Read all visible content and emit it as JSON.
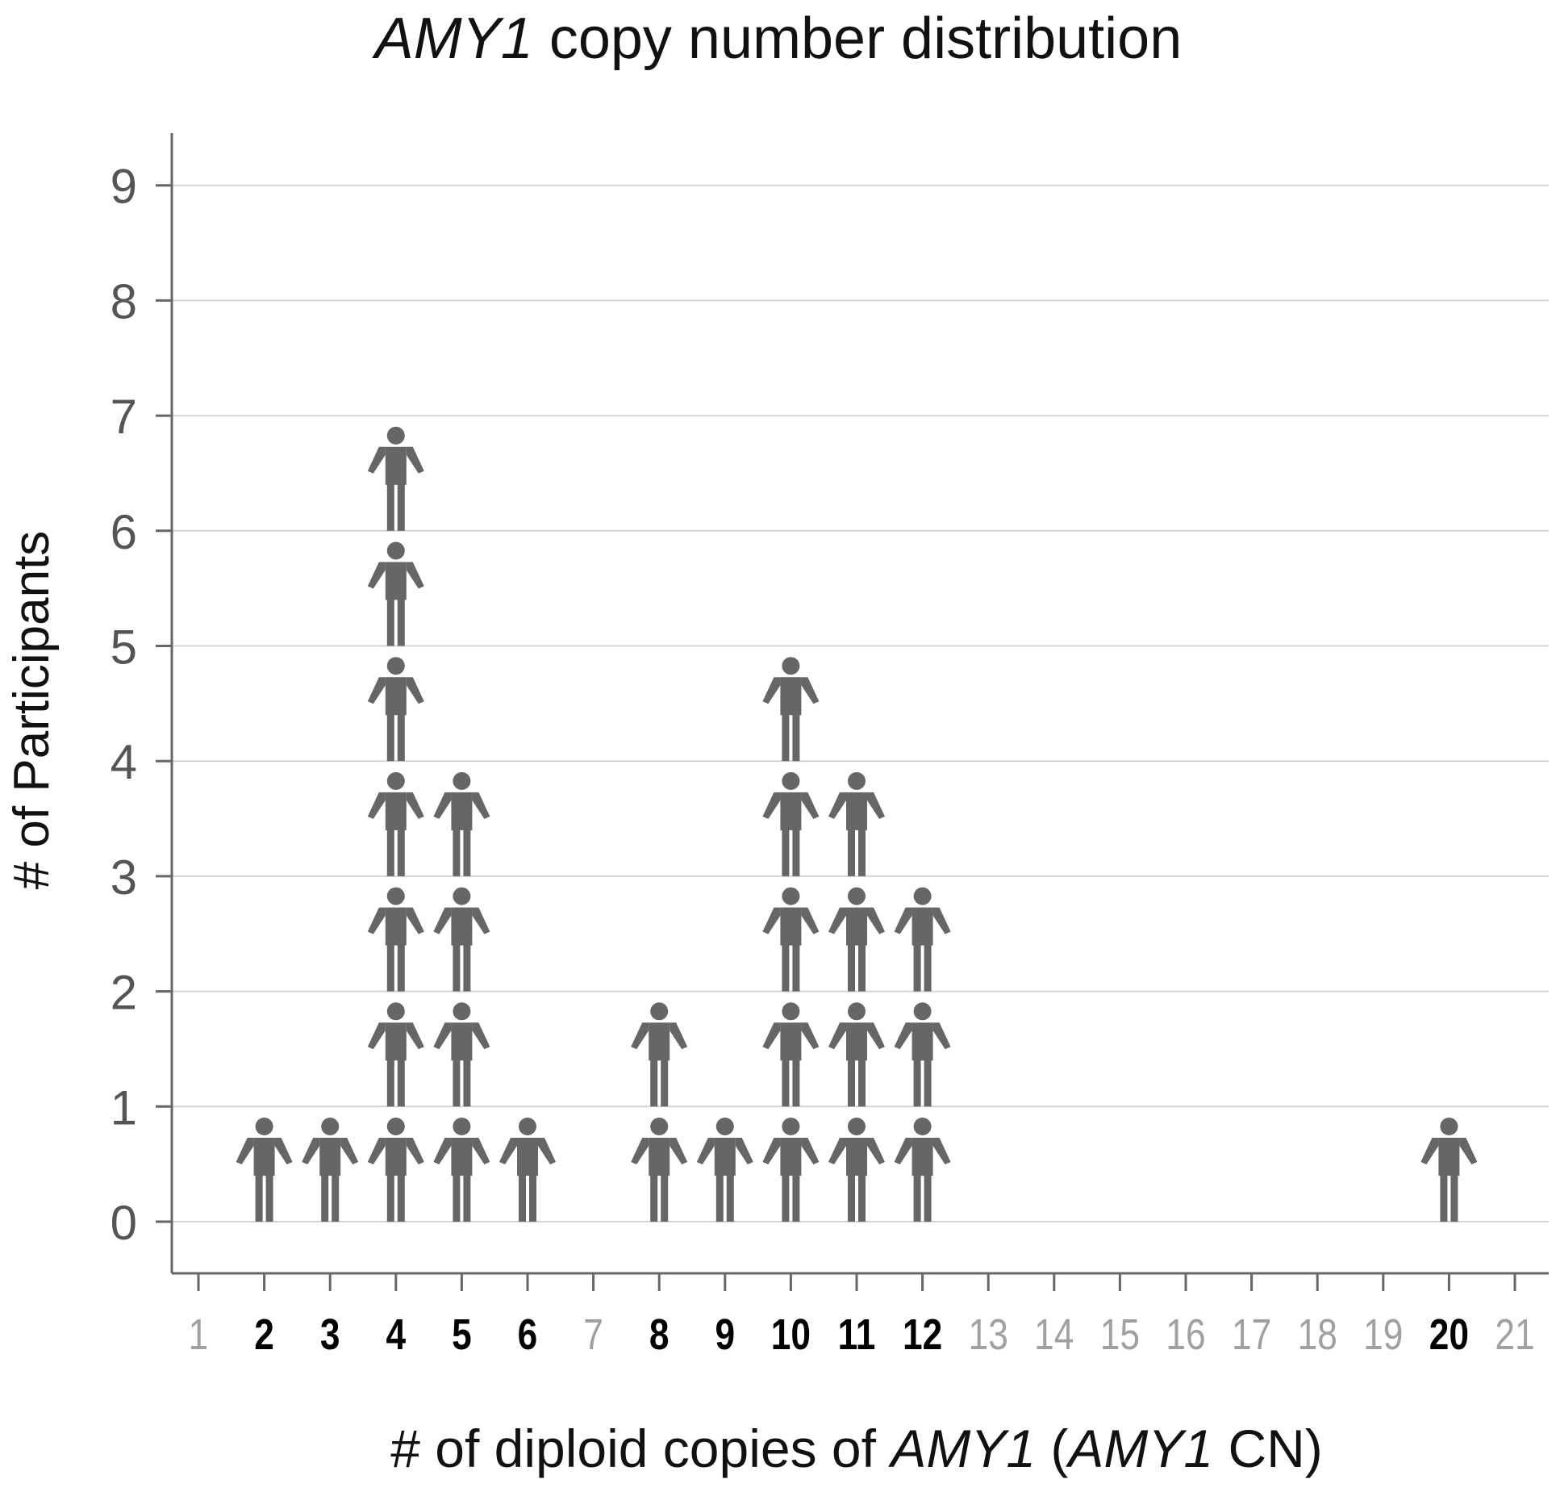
{
  "chart_data": {
    "type": "pictograph",
    "title": {
      "italic": "AMY1",
      "rest": " copy number distribution"
    },
    "xlabel": {
      "part1": "# of diploid copies of ",
      "italic1": "AMY1",
      "part2": " (",
      "italic2": "AMY1",
      "part3": " CN)"
    },
    "ylabel": "# of Participants",
    "x_ticks": [
      1,
      2,
      3,
      4,
      5,
      6,
      7,
      8,
      9,
      10,
      11,
      12,
      13,
      14,
      15,
      16,
      17,
      18,
      19,
      20,
      21
    ],
    "y_ticks": [
      0,
      1,
      2,
      3,
      4,
      5,
      6,
      7,
      8,
      9
    ],
    "xlim": [
      1,
      21
    ],
    "ylim": [
      0,
      9
    ],
    "grid": "horizontal",
    "x": [
      2,
      3,
      4,
      5,
      6,
      8,
      9,
      10,
      11,
      12,
      20
    ],
    "counts": [
      1,
      1,
      7,
      4,
      1,
      2,
      1,
      5,
      4,
      3,
      1
    ],
    "colors": {
      "icon": "#666666",
      "tick_present": "#000000",
      "tick_absent": "#a0a0a0",
      "grid": "#d4d4d4",
      "axis": "#666666",
      "y_tick_label": "#555555"
    }
  }
}
